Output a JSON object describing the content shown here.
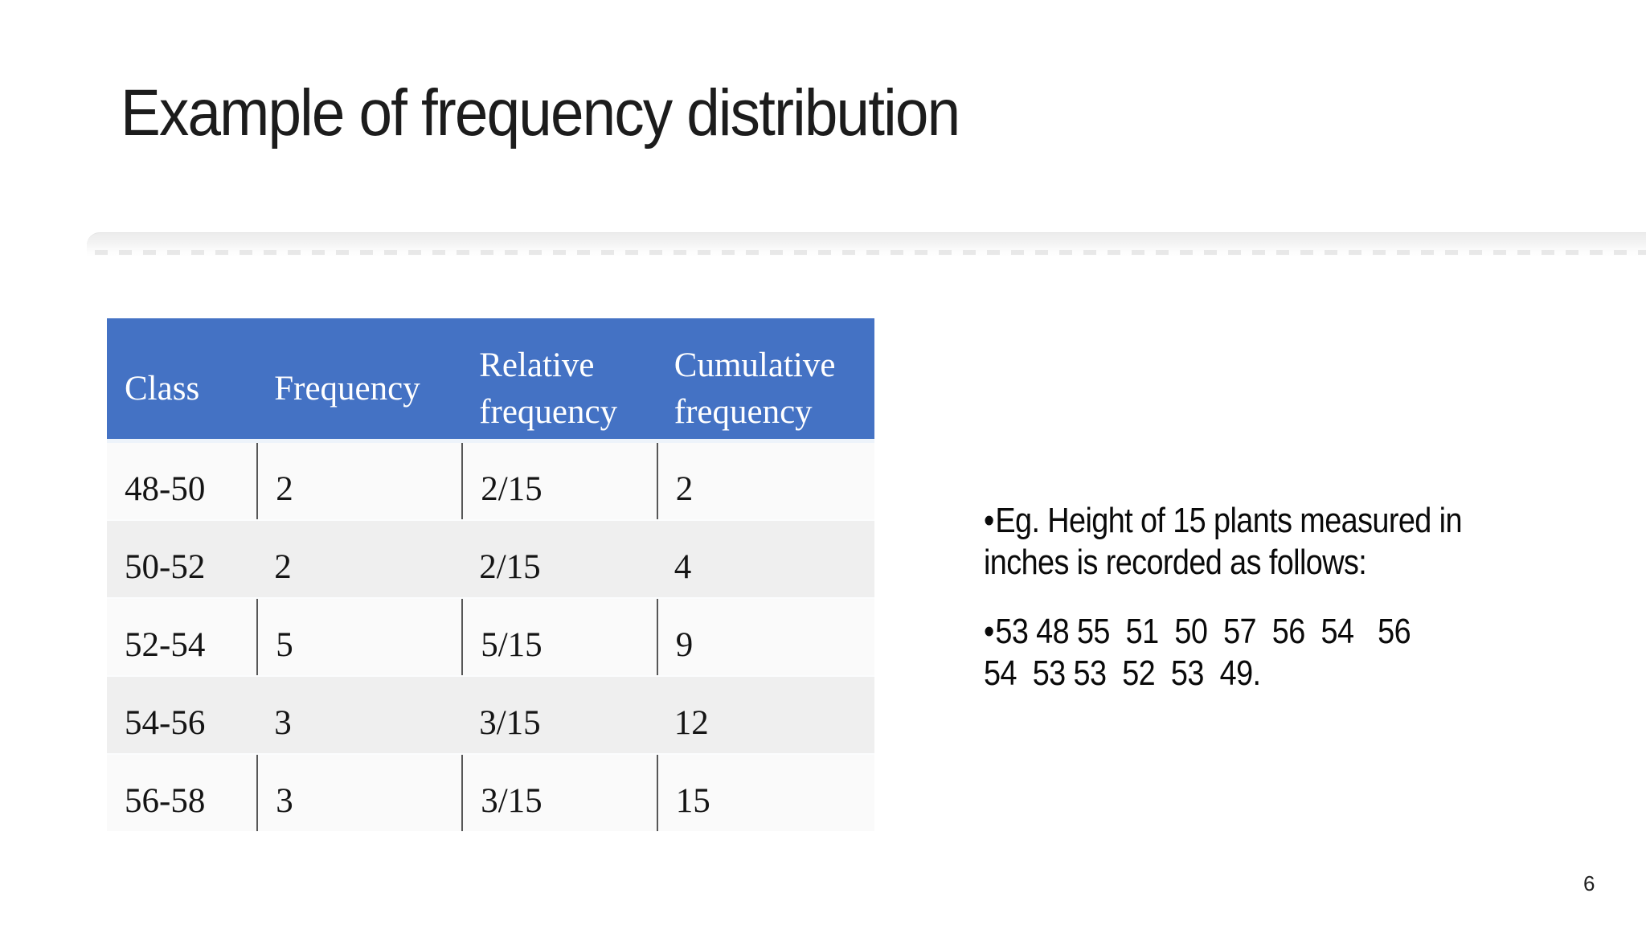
{
  "slide": {
    "title": "Example of frequency distribution",
    "page_number": "6"
  },
  "table": {
    "headers": [
      "Class",
      "Frequency",
      "Relative frequency",
      "Cumulative frequency"
    ],
    "rows": [
      [
        "48-50",
        "2",
        "2/15",
        "2"
      ],
      [
        "50-52",
        "2",
        "2/15",
        "4"
      ],
      [
        "52-54",
        "5",
        "5/15",
        "9"
      ],
      [
        "54-56",
        "3",
        "3/15",
        "12"
      ],
      [
        "56-58",
        "3",
        "3/15",
        "15"
      ]
    ],
    "colors": {
      "header_bg": "#4472C4",
      "header_text": "#ffffff",
      "plain_row_bg": "#fafafa",
      "banded_row_bg": "#efefef",
      "divider": "#575757"
    }
  },
  "right_panel": {
    "bullets": [
      {
        "marker": "•",
        "lines": [
          "Eg. Height of 15 plants measured in",
          "inches is recorded as follows:"
        ]
      },
      {
        "marker": "•",
        "lines": [
          "53 48 55  51  50  57  56  54   56",
          "54  53 53  52  53  49."
        ]
      }
    ]
  }
}
